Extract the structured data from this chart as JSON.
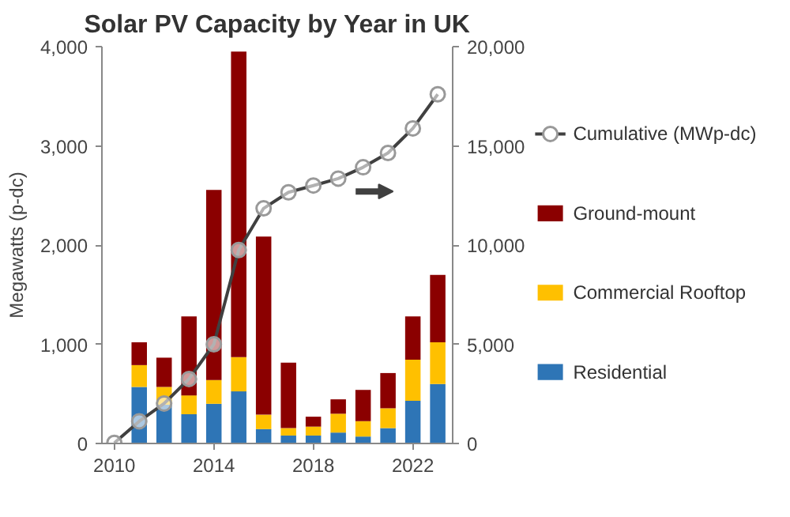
{
  "chart_data": {
    "type": "bar",
    "title": "Solar PV Capacity by Year in UK",
    "ylabel": "Megawatts (p-dc)",
    "stacked": true,
    "x": [
      2010,
      2011,
      2012,
      2013,
      2014,
      2015,
      2016,
      2017,
      2018,
      2019,
      2020,
      2021,
      2022,
      2023
    ],
    "series": [
      {
        "name": "Residential",
        "color": "#2e75b6",
        "values": [
          0,
          570,
          390,
          295,
          400,
          525,
          145,
          80,
          80,
          110,
          70,
          155,
          430,
          600
        ]
      },
      {
        "name": "Commercial Rooftop",
        "color": "#ffc000",
        "values": [
          0,
          220,
          180,
          190,
          240,
          345,
          145,
          75,
          90,
          190,
          155,
          200,
          415,
          420
        ]
      },
      {
        "name": "Ground-mount",
        "color": "#8b0000",
        "values": [
          0,
          230,
          295,
          795,
          1915,
          3080,
          1795,
          660,
          100,
          145,
          315,
          355,
          435,
          680
        ]
      },
      {
        "name": "Cumulative (MWp-dc)",
        "type": "line",
        "axis": "y2",
        "color": "#404040",
        "marker": "circle",
        "values": [
          30,
          1120,
          2015,
          3250,
          5000,
          9750,
          11850,
          12660,
          13000,
          13350,
          13920,
          14640,
          15880,
          17600
        ]
      }
    ],
    "xlim": [
      2009.5,
      2023.6
    ],
    "xticks": [
      2010,
      2014,
      2018,
      2022
    ],
    "ylim": [
      0,
      4000
    ],
    "yticks": [
      0,
      {
        "value": 1000,
        "label": "1,000"
      },
      {
        "value": 2000,
        "label": "2,000"
      },
      {
        "value": 3000,
        "label": "3,000"
      },
      {
        "value": 4000,
        "label": "4,000"
      }
    ],
    "y2lim": [
      0,
      20000
    ],
    "y2ticks": [
      0,
      {
        "value": 5000,
        "label": "5,000"
      },
      {
        "value": 10000,
        "label": "10,000"
      },
      {
        "value": 15000,
        "label": "15,000"
      },
      {
        "value": 20000,
        "label": "20,000"
      }
    ],
    "grid": false,
    "legend": "right"
  }
}
